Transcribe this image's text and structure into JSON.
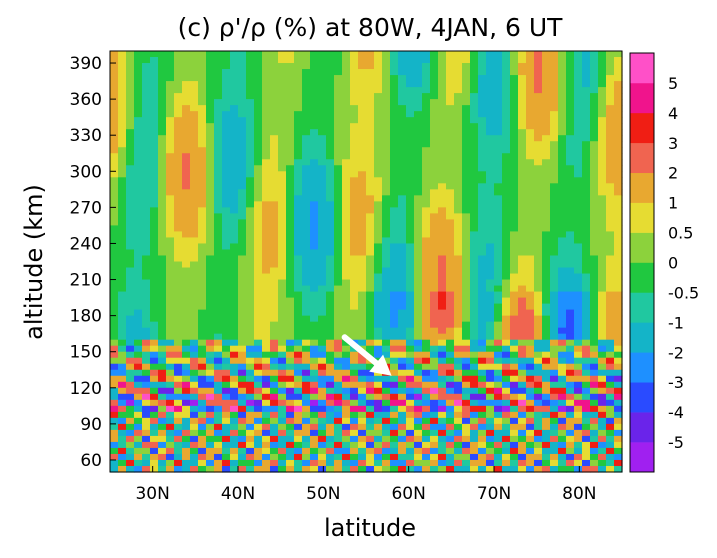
{
  "chart_data": {
    "type": "heatmap",
    "title": "(c) ρ'/ρ (%) at 80W, 4JAN, 6 UT",
    "xlabel": "latitude",
    "ylabel": "altitude (km)",
    "xlim": [
      25,
      85
    ],
    "ylim": [
      50,
      400
    ],
    "x_ticks": [
      30,
      40,
      50,
      60,
      70,
      80
    ],
    "x_tick_labels": [
      "30N",
      "40N",
      "50N",
      "60N",
      "70N",
      "80N"
    ],
    "y_ticks": [
      60,
      90,
      120,
      150,
      180,
      210,
      240,
      270,
      300,
      330,
      360,
      390
    ],
    "y_tick_labels": [
      "60",
      "90",
      "120",
      "150",
      "180",
      "210",
      "240",
      "270",
      "300",
      "330",
      "360",
      "390"
    ],
    "colorbar": {
      "levels": [
        -5,
        -4,
        -3,
        -2,
        -1,
        -0.5,
        0,
        0.5,
        1,
        2,
        3,
        4,
        5
      ],
      "labels": [
        "-5",
        "-4",
        "-3",
        "-2",
        "-1",
        "-0.5",
        "0",
        "0.5",
        "1",
        "2",
        "3",
        "4",
        "5"
      ],
      "colors": [
        "#a020f0",
        "#6a24ea",
        "#2a4bff",
        "#1e90ff",
        "#14b4c8",
        "#20c8a0",
        "#20c840",
        "#8cd23c",
        "#e6dc32",
        "#e8a830",
        "#f06450",
        "#f01e14",
        "#f0148c",
        "#ff50c8"
      ]
    },
    "annotation": "white arrow pointing to ~58N, 130 km",
    "arrow": {
      "from": [
        52.5,
        162
      ],
      "to": [
        58,
        130
      ]
    }
  }
}
